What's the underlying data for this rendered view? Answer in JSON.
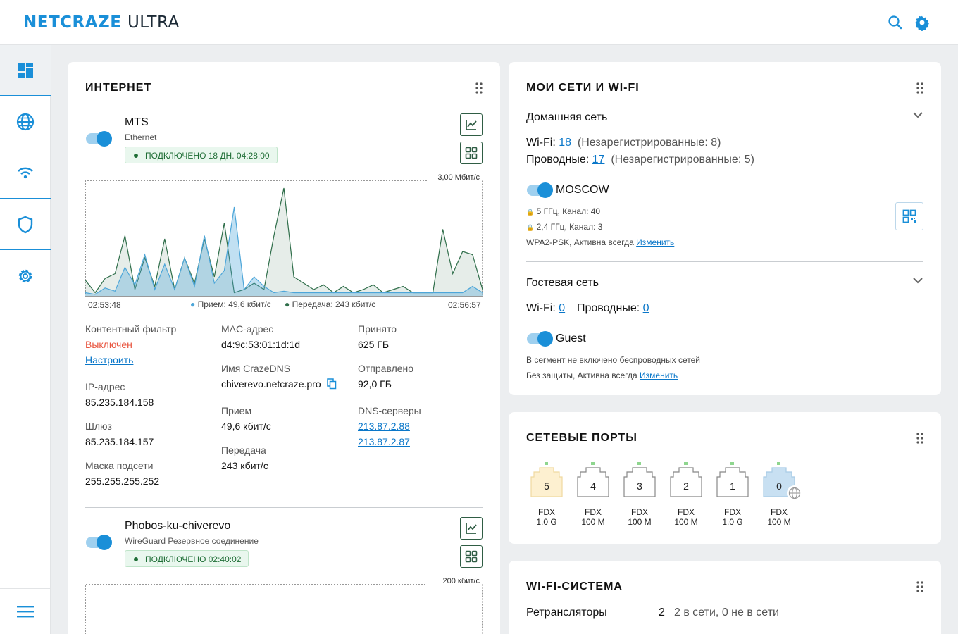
{
  "header": {
    "logo_part1": "NETCRAZE",
    "logo_part2": "ULTRA"
  },
  "colors": {
    "accent": "#1a8fd8",
    "connected": "#1f6e36",
    "error": "#e8553f",
    "rx": "#4da6d9",
    "tx": "#2f6e4a"
  },
  "internet": {
    "title": "ИНТЕРНЕТ",
    "conn1": {
      "name": "MTS",
      "type": "Ethernet",
      "status": "ПОДКЛЮЧЕНО 18 ДН. 04:28:00",
      "chart_max": "3,00 Мбит/с",
      "time_start": "02:53:48",
      "time_end": "02:56:57",
      "legend_rx": "Прием: 49,6 кбит/с",
      "legend_tx": "Передача: 243 кбит/с"
    },
    "details": {
      "filter_label": "Контентный фильтр",
      "filter_value": "Выключен",
      "filter_link": "Настроить",
      "ip_label": "IP-адрес",
      "ip_value": "85.235.184.158",
      "gw_label": "Шлюз",
      "gw_value": "85.235.184.157",
      "mask_label": "Маска подсети",
      "mask_value": "255.255.255.252",
      "mac_label": "MAC-адрес",
      "mac_value": "d4:9c:53:01:1d:1d",
      "dns_name_label": "Имя CrazeDNS",
      "dns_name_value": "chiverevo.netcraze.pro",
      "rx_label": "Прием",
      "rx_value": "49,6 кбит/с",
      "tx_label": "Передача",
      "tx_value": "243 кбит/с",
      "recv_label": "Принято",
      "recv_value": "625 ГБ",
      "sent_label": "Отправлено",
      "sent_value": "92,0 ГБ",
      "dns_label": "DNS-серверы",
      "dns1": "213.87.2.88",
      "dns2": "213.87.2.87"
    },
    "conn2": {
      "name": "Phobos-ku-chiverevo",
      "type": "WireGuard Резервное соединение",
      "status": "ПОДКЛЮЧЕНО 02:40:02",
      "chart_max": "200 кбит/с"
    }
  },
  "networks": {
    "title": "МОИ СЕТИ И WI-FI",
    "home": {
      "title": "Домашняя сеть",
      "wifi_label": "Wi-Fi:",
      "wifi_count": "18",
      "wifi_unreg": "(Незарегистрированные: 8)",
      "wired_label": "Проводные:",
      "wired_count": "17",
      "wired_unreg": "(Незарегистрированные: 5)",
      "ssid": "MOSCOW",
      "band1": "5 ГГц, Канал: 40",
      "band2": "2,4 ГГц, Канал: 3",
      "security": "WPA2-PSK, Активна всегда",
      "change": "Изменить"
    },
    "guest": {
      "title": "Гостевая сеть",
      "wifi_label": "Wi-Fi:",
      "wifi_count": "0",
      "wired_label": "Проводные:",
      "wired_count": "0",
      "ssid": "Guest",
      "note": "В сегмент не включено беспроводных сетей",
      "security": "Без защиты, Активна всегда",
      "change": "Изменить"
    }
  },
  "ports": {
    "title": "СЕТЕВЫЕ ПОРТЫ",
    "items": [
      {
        "num": "5",
        "duplex": "FDX",
        "speed": "1.0 G"
      },
      {
        "num": "4",
        "duplex": "FDX",
        "speed": "100 M"
      },
      {
        "num": "3",
        "duplex": "FDX",
        "speed": "100 M"
      },
      {
        "num": "2",
        "duplex": "FDX",
        "speed": "100 M"
      },
      {
        "num": "1",
        "duplex": "FDX",
        "speed": "1.0 G"
      },
      {
        "num": "0",
        "duplex": "FDX",
        "speed": "100 M"
      }
    ]
  },
  "wifi_system": {
    "title": "WI-FI-СИСТЕМА",
    "repeaters_label": "Ретрансляторы",
    "repeaters_count": "2",
    "repeaters_status": "2 в сети, 0 не в сети"
  },
  "chart_data": {
    "type": "area",
    "y_max_label": "3,00 Мбит/с",
    "x_range": [
      "02:53:48",
      "02:56:57"
    ],
    "series": [
      {
        "name": "Прием",
        "values": [
          0.1,
          0.05,
          0.25,
          0.15,
          0.9,
          0.35,
          1.3,
          0.2,
          1.0,
          0.2,
          1.2,
          0.3,
          1.9,
          0.4,
          0.8,
          2.8,
          0.2,
          0.6,
          0.3,
          0.1,
          0.15,
          0.1,
          0.1,
          0.1,
          0.1,
          0.1,
          0.1,
          0.1,
          0.1,
          0.1,
          0.1,
          0.1,
          0.1,
          0.1,
          0.1,
          0.1,
          0.1,
          0.1,
          0.1,
          0.3,
          0.1
        ]
      },
      {
        "name": "Передача",
        "values": [
          0.5,
          0.1,
          0.55,
          0.7,
          1.9,
          0.2,
          1.2,
          0.3,
          1.8,
          0.2,
          1.2,
          0.4,
          1.8,
          0.6,
          2.3,
          0.1,
          0.2,
          0.4,
          0.2,
          1.9,
          3.4,
          0.6,
          0.4,
          0.2,
          0.35,
          0.1,
          0.3,
          0.1,
          0.2,
          0.35,
          0.1,
          0.2,
          0.3,
          0.1,
          0.1,
          0.1,
          2.1,
          0.7,
          1.4,
          1.3,
          0.2
        ]
      }
    ]
  }
}
